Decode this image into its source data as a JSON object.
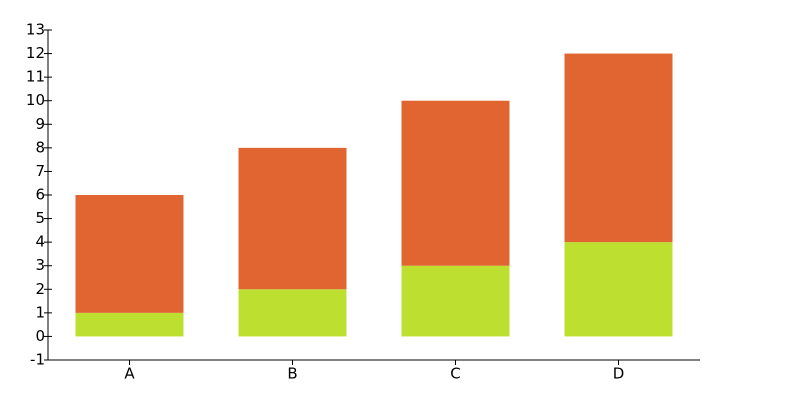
{
  "chart_data": {
    "type": "stacked-bar",
    "categories": [
      "A",
      "B",
      "C",
      "D"
    ],
    "series": [
      {
        "color": "#bde030",
        "values": [
          1,
          2,
          3,
          4
        ]
      },
      {
        "color": "#e06530",
        "values": [
          5,
          6,
          7,
          8
        ]
      }
    ],
    "ylim": [
      -1,
      13
    ],
    "yticks": [
      -1,
      0,
      1,
      2,
      3,
      4,
      5,
      6,
      7,
      8,
      9,
      10,
      11,
      12,
      13
    ]
  }
}
